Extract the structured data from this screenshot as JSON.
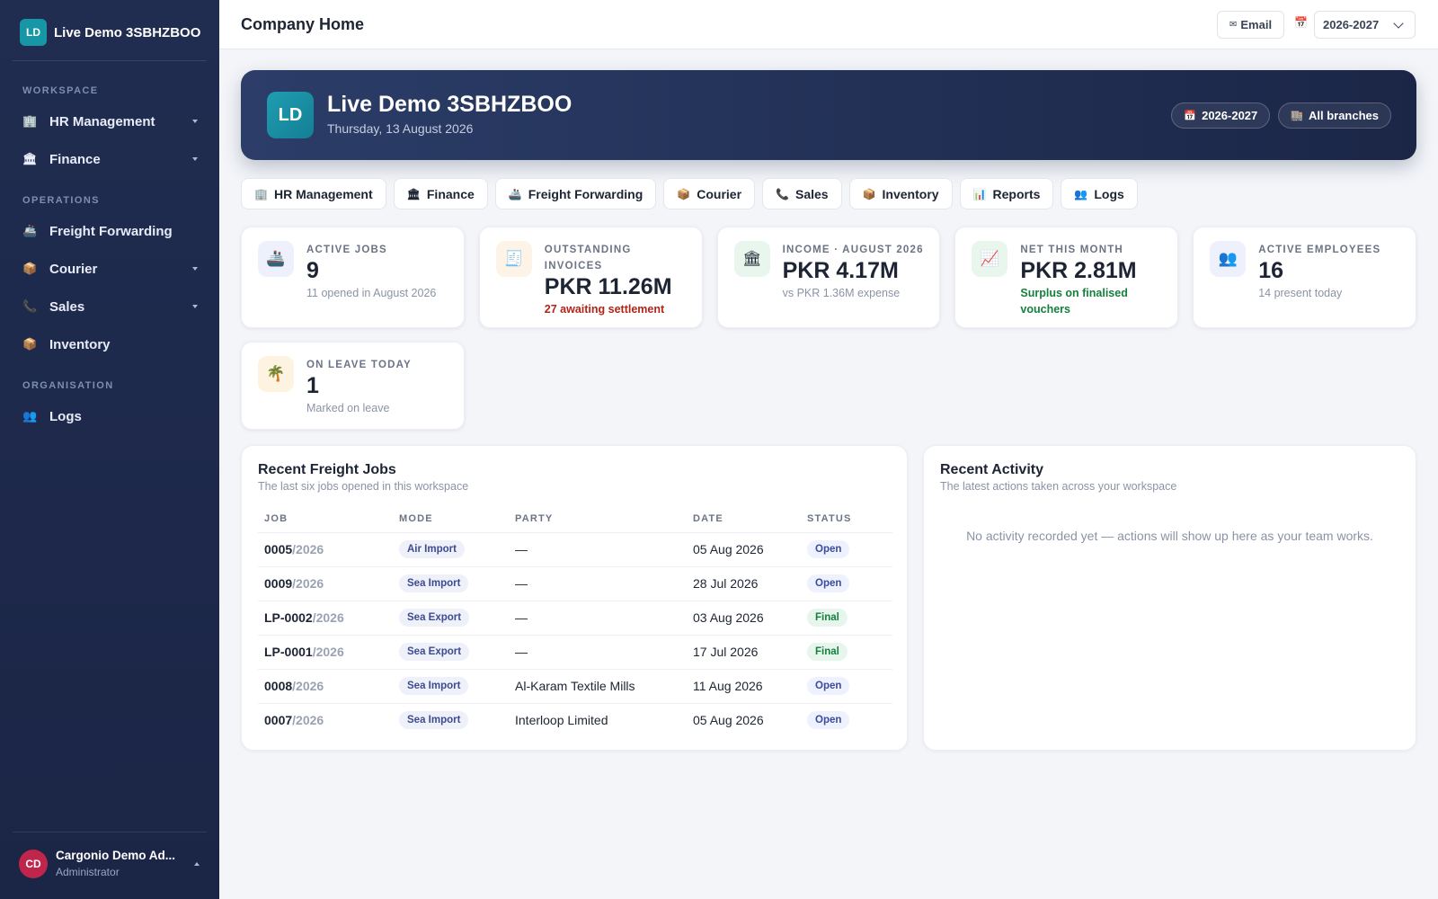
{
  "sidebar": {
    "brand": {
      "initials": "LD",
      "name": "Live Demo 3SBHZBOO"
    },
    "sections": [
      {
        "title": "WORKSPACE",
        "items": [
          {
            "icon": "🏢",
            "label": "HR Management",
            "expandable": true
          },
          {
            "icon": "🏛",
            "label": "Finance",
            "expandable": true
          }
        ]
      },
      {
        "title": "OPERATIONS",
        "items": [
          {
            "icon": "🚢",
            "label": "Freight Forwarding",
            "expandable": false
          },
          {
            "icon": "📦",
            "label": "Courier",
            "expandable": true
          },
          {
            "icon": "📞",
            "label": "Sales",
            "expandable": true
          },
          {
            "icon": "📦",
            "label": "Inventory",
            "expandable": false
          }
        ]
      },
      {
        "title": "ORGANISATION",
        "items": [
          {
            "icon": "👥",
            "label": "Logs",
            "expandable": false
          }
        ]
      }
    ],
    "user": {
      "initials": "CD",
      "name": "Cargonio Demo Ad...",
      "role": "Administrator"
    }
  },
  "topbar": {
    "title": "Company Home",
    "email": {
      "icon": "✉",
      "label": "Email"
    },
    "calendar_icon": "📅",
    "year": "2026-2027"
  },
  "hero": {
    "initials": "LD",
    "title": "Live Demo 3SBHZBOO",
    "date": "Thursday, 13 August 2026",
    "pills": [
      {
        "icon": "📅",
        "label": "2026-2027"
      },
      {
        "icon": "🏬",
        "label": "All branches"
      }
    ]
  },
  "quick_links": [
    {
      "icon": "🏢",
      "label": "HR Management"
    },
    {
      "icon": "🏛",
      "label": "Finance"
    },
    {
      "icon": "🚢",
      "label": "Freight Forwarding"
    },
    {
      "icon": "📦",
      "label": "Courier"
    },
    {
      "icon": "📞",
      "label": "Sales"
    },
    {
      "icon": "📦",
      "label": "Inventory"
    },
    {
      "icon": "📊",
      "label": "Reports"
    },
    {
      "icon": "👥",
      "label": "Logs"
    }
  ],
  "stats": [
    {
      "icon": "🚢",
      "icon_bg": "#eef1fb",
      "label": "ACTIVE JOBS",
      "value": 9,
      "note": "11 opened in August 2026",
      "tone": "muted"
    },
    {
      "icon": "🧾",
      "icon_bg": "#fdf3e6",
      "label": "OUTSTANDING INVOICES",
      "value": "PKR 11.26M",
      "note": "27 awaiting settlement",
      "tone": "danger"
    },
    {
      "icon": "🏛",
      "icon_bg": "#e8f6ee",
      "label": "INCOME · AUGUST 2026",
      "value": "PKR 4.17M",
      "note": "vs PKR 1.36M expense",
      "tone": "muted"
    },
    {
      "icon": "📈",
      "icon_bg": "#e8f6ee",
      "label": "NET THIS MONTH",
      "value": "PKR 2.81M",
      "note": "Surplus on finalised vouchers",
      "tone": "success"
    },
    {
      "icon": "👥",
      "icon_bg": "#eef1fb",
      "label": "ACTIVE EMPLOYEES",
      "value": 16,
      "note": "14 present today",
      "tone": "muted"
    },
    {
      "icon": "🌴",
      "icon_bg": "#fdf3e0",
      "label": "ON LEAVE TODAY",
      "value": 1,
      "note": "Marked on leave",
      "tone": "muted"
    }
  ],
  "jobs": {
    "title": "Recent Freight Jobs",
    "subtitle": "The last six jobs opened in this workspace",
    "columns": [
      "JOB",
      "MODE",
      "PARTY",
      "DATE",
      "STATUS"
    ],
    "rows": [
      {
        "job": "0005",
        "job_year": "/2026",
        "mode": "Air Import",
        "party": "—",
        "date": "05 Aug 2026",
        "status": "Open",
        "status_tone": "info"
      },
      {
        "job": "0009",
        "job_year": "/2026",
        "mode": "Sea Import",
        "party": "—",
        "date": "28 Jul 2026",
        "status": "Open",
        "status_tone": "info"
      },
      {
        "job": "LP-0002",
        "job_year": "/2026",
        "mode": "Sea Export",
        "party": "—",
        "date": "03 Aug 2026",
        "status": "Final",
        "status_tone": "success"
      },
      {
        "job": "LP-0001",
        "job_year": "/2026",
        "mode": "Sea Export",
        "party": "—",
        "date": "17 Jul 2026",
        "status": "Final",
        "status_tone": "success"
      },
      {
        "job": "0008",
        "job_year": "/2026",
        "mode": "Sea Import",
        "party": "Al-Karam Textile Mills",
        "date": "11 Aug 2026",
        "status": "Open",
        "status_tone": "info"
      },
      {
        "job": "0007",
        "job_year": "/2026",
        "mode": "Sea Import",
        "party": "Interloop Limited",
        "date": "05 Aug 2026",
        "status": "Open",
        "status_tone": "info"
      }
    ]
  },
  "activity": {
    "title": "Recent Activity",
    "subtitle": "The latest actions taken across your workspace",
    "empty": "No activity recorded yet — actions will show up here as your team works."
  }
}
